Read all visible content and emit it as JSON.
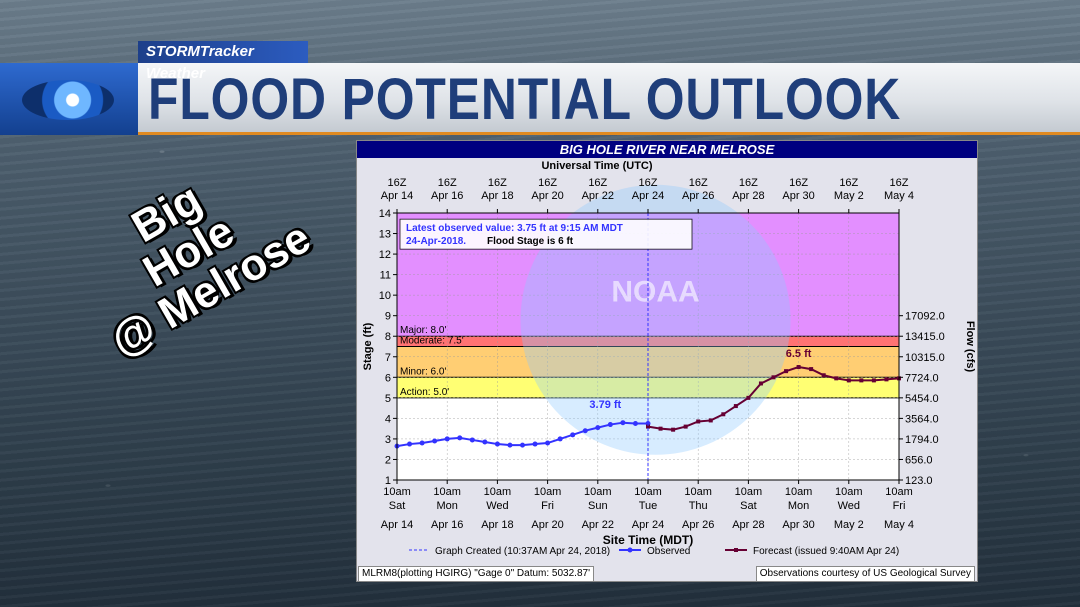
{
  "header": {
    "brand": "STORMTracker Weather",
    "title": "FLOOD POTENTIAL OUTLOOK"
  },
  "overlay": {
    "line1": "Big",
    "line2": "Hole",
    "line3": "@ Melrose"
  },
  "chart_data": {
    "type": "line",
    "title": "BIG HOLE RIVER NEAR MELROSE",
    "top_axis_title": "Universal Time (UTC)",
    "xlabel": "Site Time (MDT)",
    "ylabel": "Stage (ft)",
    "y2label": "Flow (cfs)",
    "ylim": [
      1,
      14
    ],
    "yticks": [
      1,
      2,
      3,
      4,
      5,
      6,
      7,
      8,
      9,
      10,
      11,
      12,
      13,
      14
    ],
    "flow_ticks": [
      {
        "stage": 1,
        "label": "123.0"
      },
      {
        "stage": 2,
        "label": "656.0"
      },
      {
        "stage": 3,
        "label": "1794.0"
      },
      {
        "stage": 4,
        "label": "3564.0"
      },
      {
        "stage": 5,
        "label": "5454.0"
      },
      {
        "stage": 6,
        "label": "7724.0"
      },
      {
        "stage": 7,
        "label": "10315.0"
      },
      {
        "stage": 8,
        "label": "13415.0"
      },
      {
        "stage": 9,
        "label": "17092.0"
      }
    ],
    "x_ticks": [
      {
        "time": "10am",
        "day": "Sat",
        "date": "Apr 14",
        "utc": "16Z",
        "utc_date": "Apr 14"
      },
      {
        "time": "10am",
        "day": "Mon",
        "date": "Apr 16",
        "utc": "16Z",
        "utc_date": "Apr 16"
      },
      {
        "time": "10am",
        "day": "Wed",
        "date": "Apr 18",
        "utc": "16Z",
        "utc_date": "Apr 18"
      },
      {
        "time": "10am",
        "day": "Fri",
        "date": "Apr 20",
        "utc": "16Z",
        "utc_date": "Apr 20"
      },
      {
        "time": "10am",
        "day": "Sun",
        "date": "Apr 22",
        "utc": "16Z",
        "utc_date": "Apr 22"
      },
      {
        "time": "10am",
        "day": "Tue",
        "date": "Apr 24",
        "utc": "16Z",
        "utc_date": "Apr 24"
      },
      {
        "time": "10am",
        "day": "Thu",
        "date": "Apr 26",
        "utc": "16Z",
        "utc_date": "Apr 26"
      },
      {
        "time": "10am",
        "day": "Sat",
        "date": "Apr 28",
        "utc": "16Z",
        "utc_date": "Apr 28"
      },
      {
        "time": "10am",
        "day": "Mon",
        "date": "Apr 30",
        "utc": "16Z",
        "utc_date": "Apr 30"
      },
      {
        "time": "10am",
        "day": "Wed",
        "date": "May 2",
        "utc": "16Z",
        "utc_date": "May 2"
      },
      {
        "time": "10am",
        "day": "Fri",
        "date": "May 4",
        "utc": "16Z",
        "utc_date": "May 4"
      }
    ],
    "bands": [
      {
        "label": "Action: 5.0'",
        "from": 5.0,
        "to": 6.0,
        "color": "#ffff00"
      },
      {
        "label": "Minor: 6.0'",
        "from": 6.0,
        "to": 7.5,
        "color": "#ffa500"
      },
      {
        "label": "Moderate: 7.5'",
        "from": 7.5,
        "to": 8.0,
        "color": "#ff0000"
      },
      {
        "label": "Major: 8.0'",
        "from": 8.0,
        "to": 14.0,
        "color": "#cc33ff"
      }
    ],
    "info_line1": "Latest observed value: 3.75 ft at 9:15 AM MDT",
    "info_date": "24-Apr-2018",
    "info_stage": "Flood Stage is 6 ft",
    "observed_label": "3.79 ft",
    "forecast_label": "6.5 ft",
    "graph_created_day": 10.0,
    "observed": {
      "name": "Observed",
      "days": [
        0,
        0.5,
        1,
        1.5,
        2,
        2.5,
        3,
        3.5,
        4,
        4.5,
        5,
        5.5,
        6,
        6.5,
        7,
        7.5,
        8,
        8.5,
        9,
        9.5,
        10
      ],
      "stage": [
        2.65,
        2.75,
        2.8,
        2.9,
        3.0,
        3.05,
        2.95,
        2.85,
        2.75,
        2.7,
        2.7,
        2.75,
        2.8,
        3.0,
        3.2,
        3.4,
        3.55,
        3.7,
        3.79,
        3.75,
        3.75
      ]
    },
    "forecast": {
      "name": "Forecast (issued 9:40AM Apr 24)",
      "days": [
        10,
        10.5,
        11,
        11.5,
        12,
        12.5,
        13,
        13.5,
        14,
        14.5,
        15,
        15.5,
        16,
        16.5,
        17,
        17.5,
        18,
        18.5,
        19,
        19.5,
        20
      ],
      "stage": [
        3.6,
        3.5,
        3.45,
        3.6,
        3.85,
        3.9,
        4.2,
        4.6,
        5.0,
        5.7,
        6.0,
        6.3,
        6.5,
        6.4,
        6.1,
        5.95,
        5.85,
        5.85,
        5.85,
        5.9,
        5.95
      ]
    },
    "legend": {
      "created": "Graph Created (10:37AM Apr 24, 2018)",
      "observed": "Observed",
      "forecast": "Forecast (issued 9:40AM Apr 24)"
    },
    "watermark": "NOAA",
    "colors": {
      "observed": "#3333ff",
      "forecast": "#660033",
      "panel_title_bg": "#000080"
    }
  },
  "footer": {
    "left": "MLRM8(plotting HGIRG) \"Gage 0\" Datum:  5032.87'",
    "right": "Observations courtesy of US Geological Survey"
  }
}
